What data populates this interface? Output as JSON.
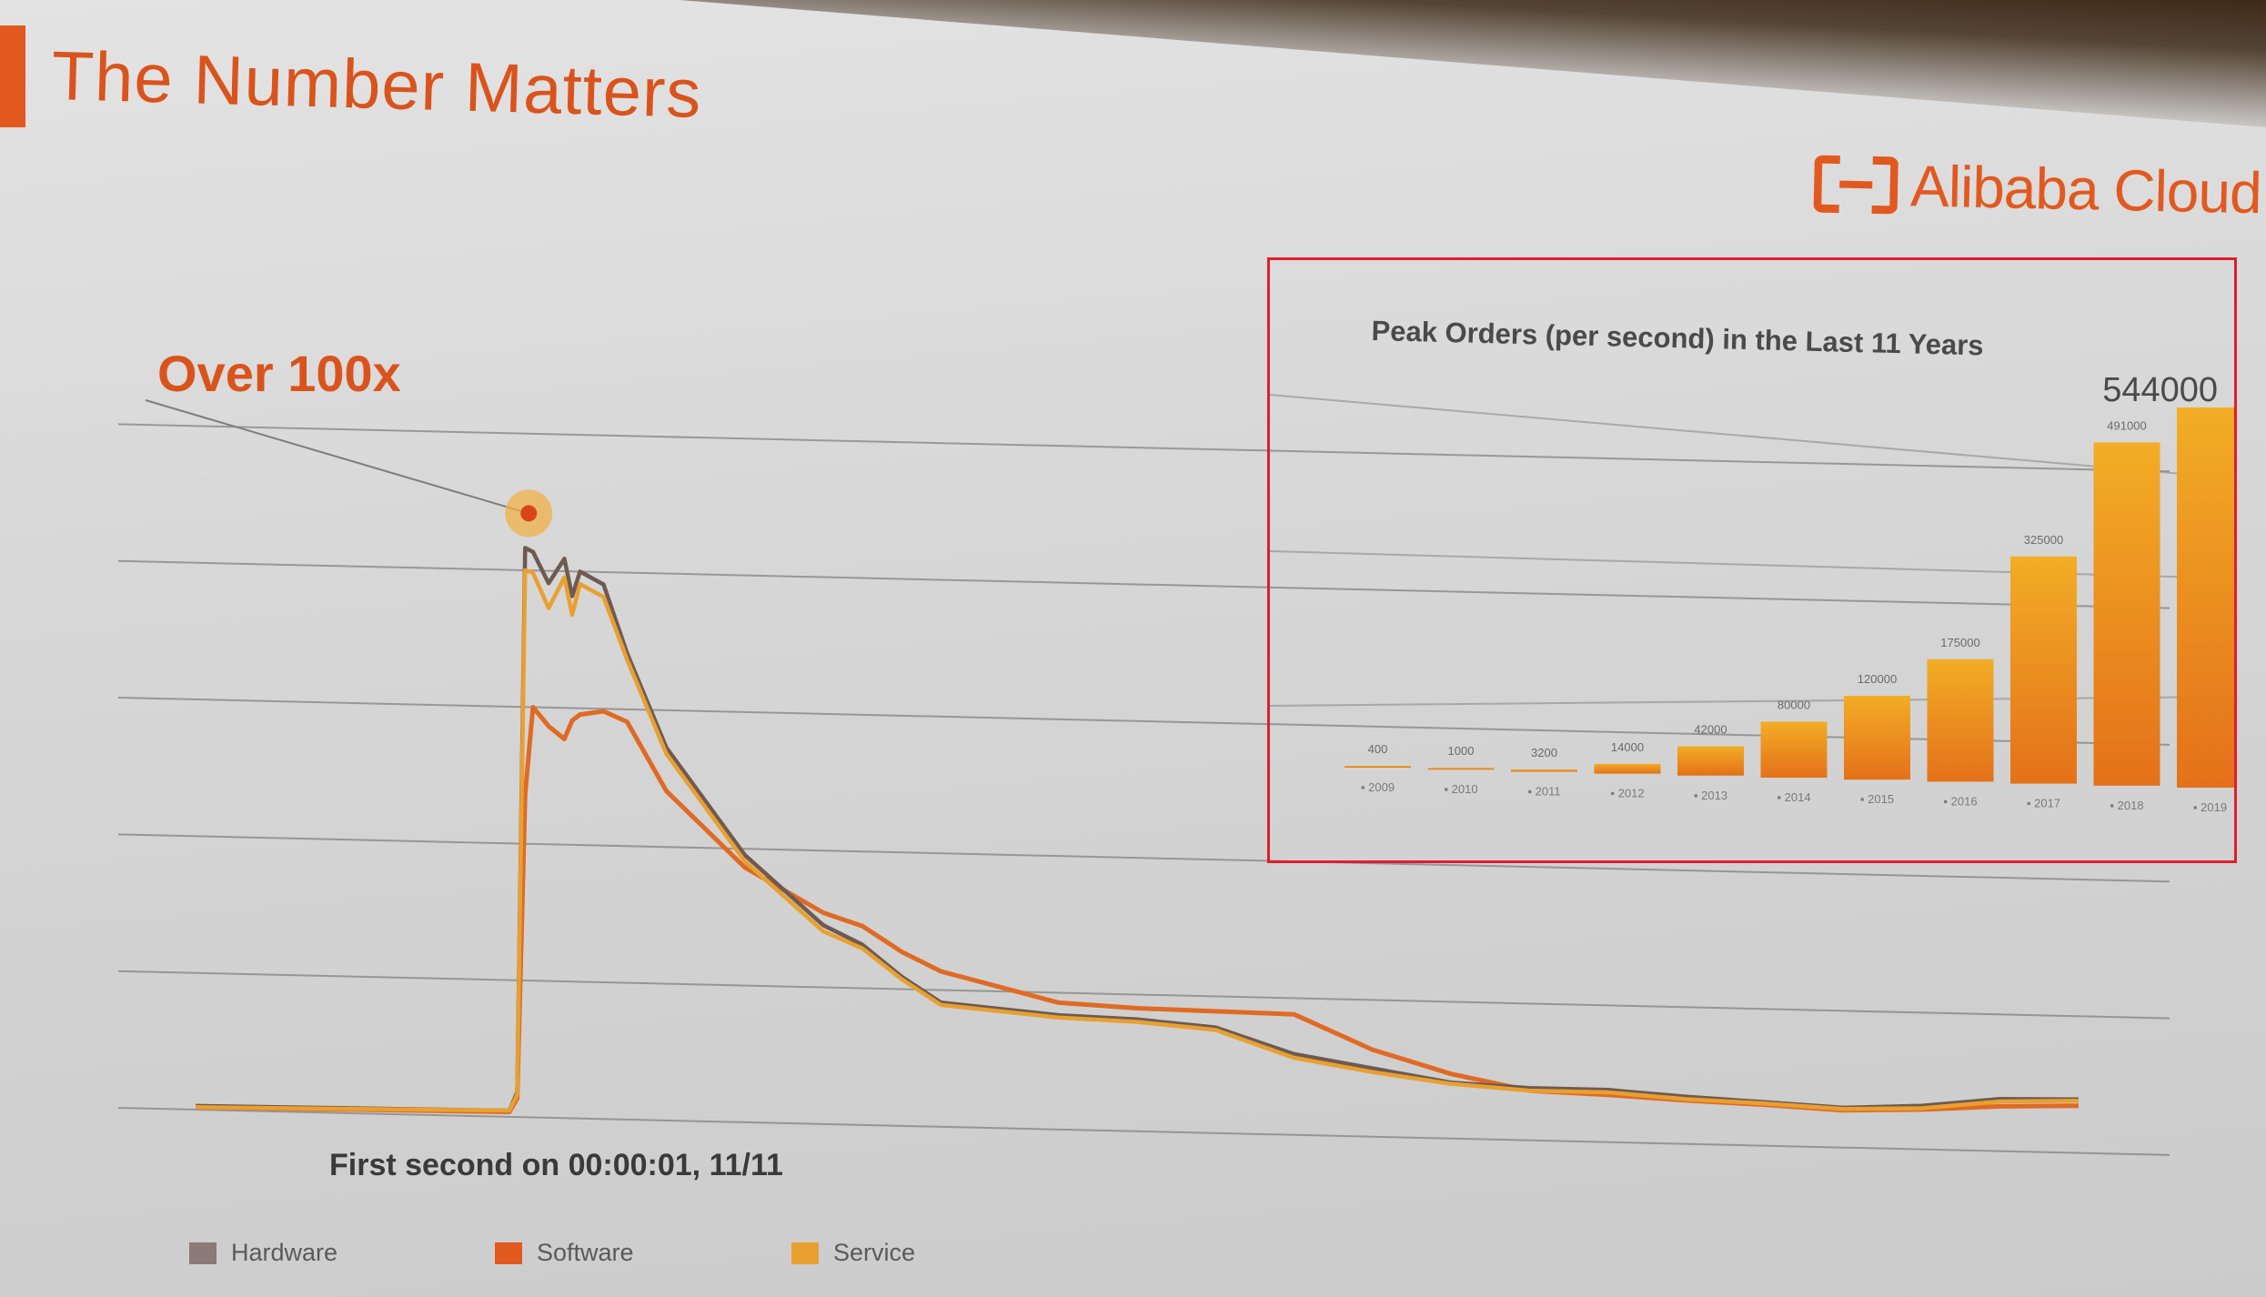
{
  "slide": {
    "title": "The Number Matters",
    "brand": "Alibaba Cloud",
    "annotation": "Over 100x",
    "caption": "First second on 00:00:01, 11/11"
  },
  "colors": {
    "accent": "#e2591f",
    "hardware": "#6e5a52",
    "software": "#e06a24",
    "service": "#e8a030",
    "inset_border": "#e01e2a"
  },
  "legend": [
    {
      "label": "Hardware",
      "color": "#8c7a78"
    },
    {
      "label": "Software",
      "color": "#e2591f"
    },
    {
      "label": "Service",
      "color": "#e8a030"
    }
  ],
  "chart_data": [
    {
      "type": "line",
      "title": "",
      "xlabel": "",
      "ylabel": "",
      "grid": true,
      "legend_position": "bottom",
      "ylim": [
        0,
        6
      ],
      "x": [
        0,
        40,
        41,
        42,
        43,
        45,
        47,
        48,
        49,
        52,
        55,
        60,
        70,
        80,
        85,
        90,
        95,
        110,
        120,
        130,
        140,
        150,
        160,
        170,
        180,
        190,
        200,
        210,
        220,
        230,
        240
      ],
      "series": [
        {
          "name": "Hardware",
          "color": "#6e5a52",
          "values": [
            0.03,
            0.05,
            0.2,
            4.58,
            4.55,
            4.3,
            4.5,
            4.2,
            4.4,
            4.3,
            3.75,
            3.0,
            2.15,
            1.6,
            1.45,
            1.2,
            1.0,
            0.92,
            0.9,
            0.85,
            0.65,
            0.55,
            0.45,
            0.42,
            0.42,
            0.38,
            0.35,
            0.32,
            0.35,
            0.42,
            0.43
          ]
        },
        {
          "name": "Software",
          "color": "#e06a24",
          "values": [
            0.02,
            0.04,
            0.15,
            2.6,
            3.3,
            3.15,
            3.05,
            3.2,
            3.25,
            3.28,
            3.2,
            2.65,
            2.05,
            1.7,
            1.6,
            1.4,
            1.25,
            1.02,
            0.99,
            0.98,
            0.97,
            0.7,
            0.52,
            0.4,
            0.38,
            0.35,
            0.33,
            0.3,
            0.32,
            0.36,
            0.38
          ]
        },
        {
          "name": "Service",
          "color": "#e8a030",
          "values": [
            0.02,
            0.05,
            0.18,
            4.4,
            4.38,
            4.1,
            4.35,
            4.05,
            4.3,
            4.2,
            3.7,
            2.95,
            2.1,
            1.55,
            1.42,
            1.18,
            0.98,
            0.9,
            0.88,
            0.83,
            0.62,
            0.52,
            0.44,
            0.4,
            0.4,
            0.36,
            0.34,
            0.31,
            0.33,
            0.4,
            0.42
          ]
        }
      ]
    },
    {
      "type": "bar",
      "title": "Peak Orders (per second)  in the Last 11 Years",
      "categories": [
        "2009",
        "2010",
        "2011",
        "2012",
        "2013",
        "2014",
        "2015",
        "2016",
        "2017",
        "2018",
        "2019"
      ],
      "values": [
        400,
        1000,
        3200,
        14000,
        42000,
        80000,
        120000,
        175000,
        325000,
        491000,
        544000
      ],
      "value_labels": [
        "400",
        "1000",
        "3200",
        "14000",
        "42000",
        "80000",
        "120000",
        "175000",
        "325000",
        "491000",
        "544000"
      ],
      "ylim": [
        0,
        544000
      ],
      "color": "#f0a023",
      "peak_label": "544000"
    }
  ]
}
